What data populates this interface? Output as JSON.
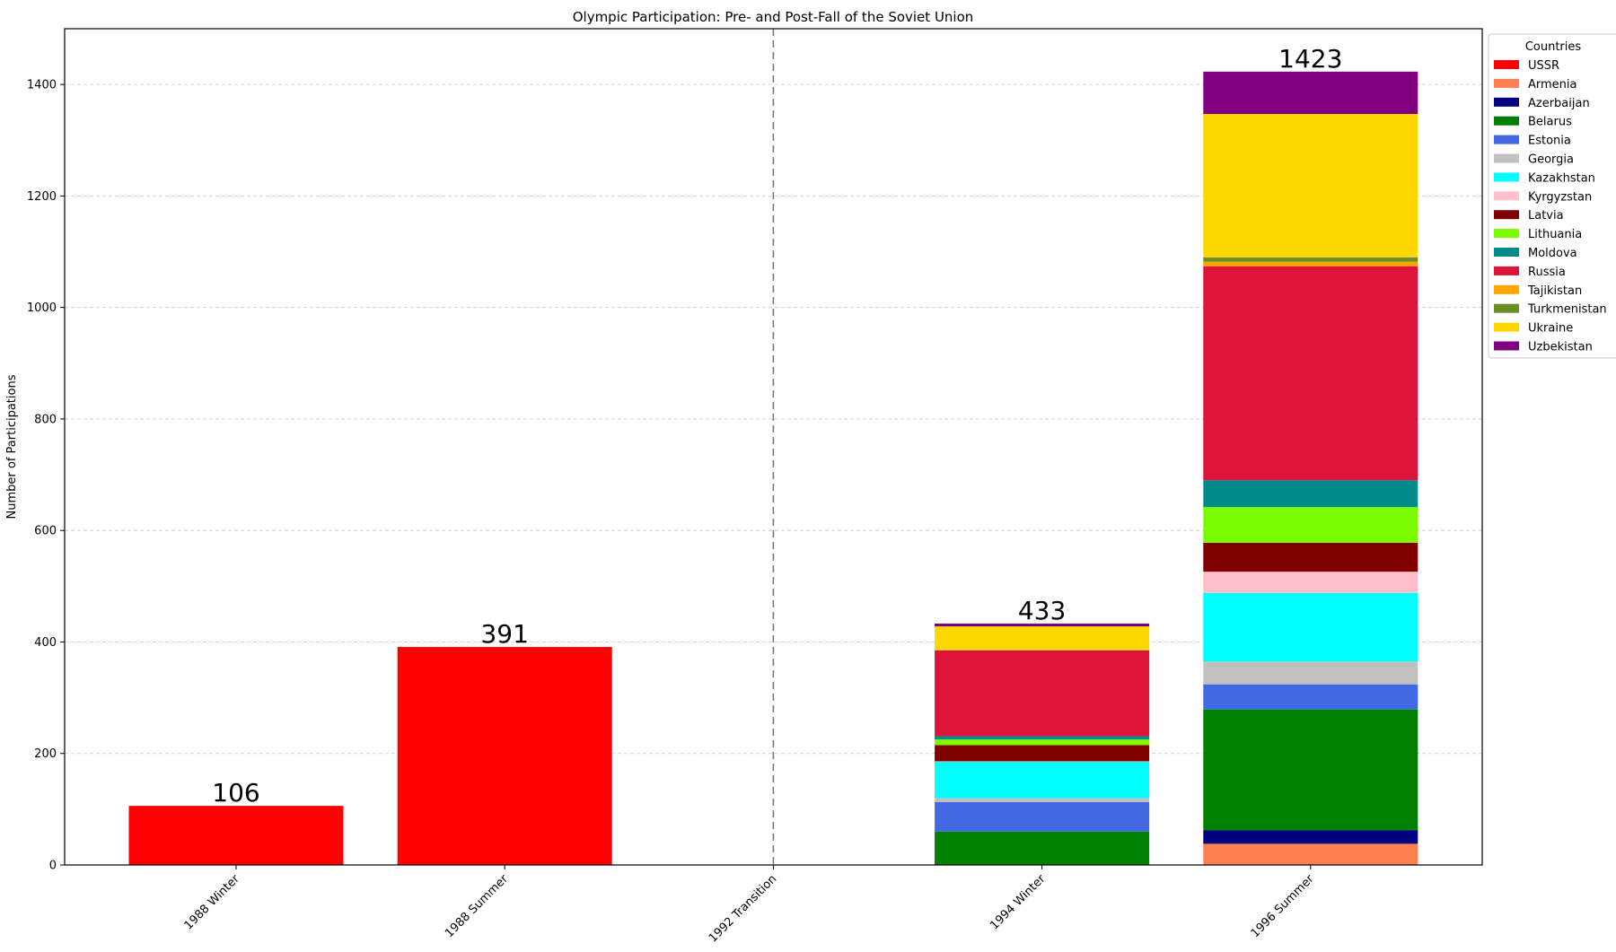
{
  "chart_data": {
    "type": "bar",
    "stacked": true,
    "title": "Olympic Participation: Pre- and Post-Fall of the Soviet Union",
    "xlabel": "",
    "ylabel": "Number of Participations",
    "categories": [
      "1988 Winter",
      "1988 Summer",
      "1992 Transition",
      "1994 Winter",
      "1996 Summer"
    ],
    "ylim": [
      0,
      1500
    ],
    "yticks": [
      0,
      200,
      400,
      600,
      800,
      1000,
      1200,
      1400
    ],
    "grid": "y",
    "divider_after_category": "1992 Transition",
    "legend": {
      "title": "Countries",
      "placement": "outside-top-right"
    },
    "series": [
      {
        "name": "USSR",
        "color": "#ff0000",
        "values": [
          106,
          391,
          0,
          0,
          0
        ]
      },
      {
        "name": "Armenia",
        "color": "#ff7f50",
        "values": [
          0,
          0,
          0,
          0,
          38
        ]
      },
      {
        "name": "Azerbaijan",
        "color": "#000080",
        "values": [
          0,
          0,
          0,
          0,
          24
        ]
      },
      {
        "name": "Belarus",
        "color": "#008000",
        "values": [
          0,
          0,
          0,
          60,
          217
        ]
      },
      {
        "name": "Estonia",
        "color": "#4169e1",
        "values": [
          0,
          0,
          0,
          53,
          45
        ]
      },
      {
        "name": "Georgia",
        "color": "#c0c0c0",
        "values": [
          0,
          0,
          0,
          7,
          41
        ]
      },
      {
        "name": "Kazakhstan",
        "color": "#00ffff",
        "values": [
          0,
          0,
          0,
          65,
          123
        ]
      },
      {
        "name": "Kyrgyzstan",
        "color": "#ffc0cb",
        "values": [
          0,
          0,
          0,
          1,
          38
        ]
      },
      {
        "name": "Latvia",
        "color": "#800000",
        "values": [
          0,
          0,
          0,
          29,
          52
        ]
      },
      {
        "name": "Lithuania",
        "color": "#7cfc00",
        "values": [
          0,
          0,
          0,
          10,
          64
        ]
      },
      {
        "name": "Moldova",
        "color": "#008b8b",
        "values": [
          0,
          0,
          0,
          6,
          48
        ]
      },
      {
        "name": "Russia",
        "color": "#dc143c",
        "values": [
          0,
          0,
          0,
          154,
          384
        ]
      },
      {
        "name": "Tajikistan",
        "color": "#ffa500",
        "values": [
          0,
          0,
          0,
          0,
          8
        ]
      },
      {
        "name": "Turkmenistan",
        "color": "#6b8e23",
        "values": [
          0,
          0,
          0,
          0,
          8
        ]
      },
      {
        "name": "Ukraine",
        "color": "#ffd700",
        "values": [
          0,
          0,
          0,
          43,
          257
        ]
      },
      {
        "name": "Uzbekistan",
        "color": "#800080",
        "values": [
          0,
          0,
          0,
          5,
          76
        ]
      }
    ],
    "totals": [
      "106",
      "391",
      "",
      "433",
      "1423"
    ]
  }
}
